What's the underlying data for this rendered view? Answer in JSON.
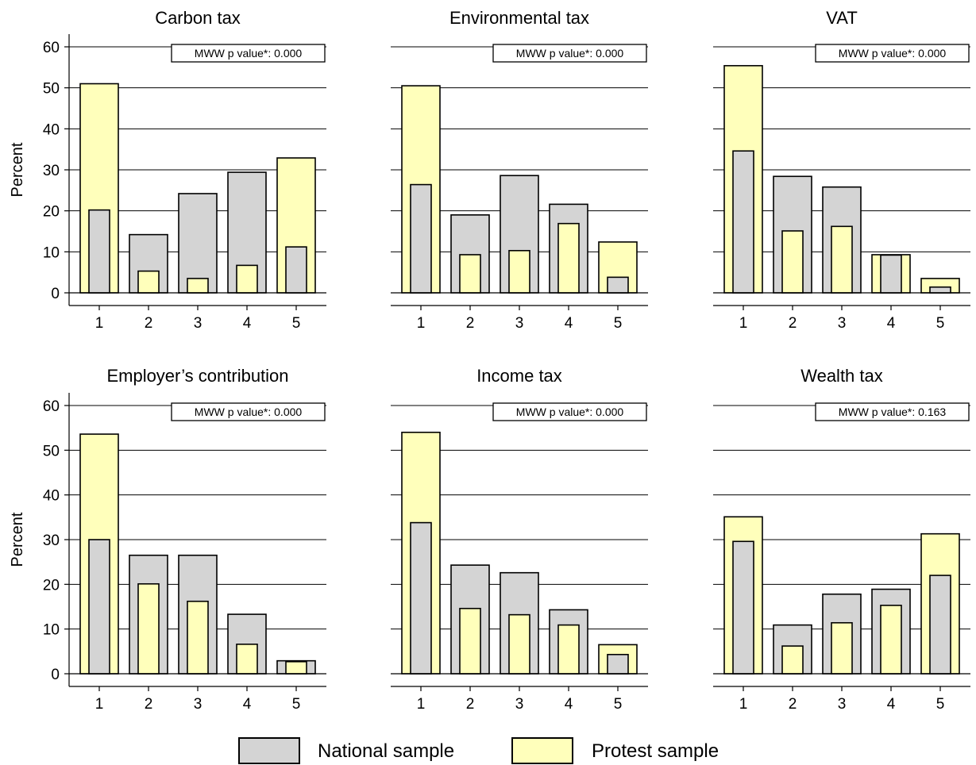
{
  "colors": {
    "national": "#d4d4d4",
    "protest": "#ffffbb",
    "stroke": "#000000",
    "grid": "#000000"
  },
  "legend": {
    "placement": "bottom-center",
    "national_label": "National sample",
    "protest_label": "Protest sample"
  },
  "chart_data": [
    {
      "type": "bar",
      "title": "Carbon tax",
      "ylabel": "Percent",
      "xlabel": "",
      "categories": [
        "1",
        "2",
        "3",
        "4",
        "5"
      ],
      "ylim": [
        0,
        60
      ],
      "yticks": [
        "0",
        "10",
        "20",
        "30",
        "40",
        "50",
        "60"
      ],
      "grid": true,
      "annotation": "MWW p  value*: 0.000",
      "series": [
        {
          "name": "National sample",
          "values": [
            20.2,
            14.2,
            24.2,
            29.4,
            11.2
          ]
        },
        {
          "name": "Protest sample",
          "values": [
            51,
            5.3,
            3.5,
            6.7,
            32.9
          ]
        }
      ]
    },
    {
      "type": "bar",
      "title": "Environmental tax",
      "ylabel": "",
      "xlabel": "",
      "categories": [
        "1",
        "2",
        "3",
        "4",
        "5"
      ],
      "ylim": [
        0,
        60
      ],
      "yticks": [],
      "grid": true,
      "annotation": "MWW p  value*: 0.000",
      "series": [
        {
          "name": "National sample",
          "values": [
            26.4,
            19.0,
            28.6,
            21.6,
            3.8
          ]
        },
        {
          "name": "Protest sample",
          "values": [
            50.5,
            9.3,
            10.3,
            16.9,
            12.4
          ]
        }
      ]
    },
    {
      "type": "bar",
      "title": "VAT",
      "ylabel": "",
      "xlabel": "",
      "categories": [
        "1",
        "2",
        "3",
        "4",
        "5"
      ],
      "ylim": [
        0,
        60
      ],
      "yticks": [],
      "grid": true,
      "annotation": "MWW p  value*: 0.000",
      "series": [
        {
          "name": "National sample",
          "values": [
            34.6,
            28.4,
            25.8,
            9.2,
            1.4
          ]
        },
        {
          "name": "Protest sample",
          "values": [
            55.4,
            15.1,
            16.2,
            9.3,
            3.5
          ]
        }
      ]
    },
    {
      "type": "bar",
      "title": "Employer’s contribution",
      "ylabel": "Percent",
      "xlabel": "",
      "categories": [
        "1",
        "2",
        "3",
        "4",
        "5"
      ],
      "ylim": [
        0,
        60
      ],
      "yticks": [
        "0",
        "10",
        "20",
        "30",
        "40",
        "50",
        "60"
      ],
      "grid": true,
      "annotation": "MWW p  value*: 0.000",
      "series": [
        {
          "name": "National sample",
          "values": [
            30.0,
            26.5,
            26.5,
            13.3,
            2.9
          ]
        },
        {
          "name": "Protest sample",
          "values": [
            53.6,
            20.1,
            16.2,
            6.6,
            2.7
          ]
        }
      ]
    },
    {
      "type": "bar",
      "title": "Income tax",
      "ylabel": "",
      "xlabel": "",
      "categories": [
        "1",
        "2",
        "3",
        "4",
        "5"
      ],
      "ylim": [
        0,
        60
      ],
      "yticks": [],
      "grid": true,
      "annotation": "MWW p  value*: 0.000",
      "series": [
        {
          "name": "National sample",
          "values": [
            33.8,
            24.3,
            22.6,
            14.3,
            4.3
          ]
        },
        {
          "name": "Protest sample",
          "values": [
            54.0,
            14.6,
            13.2,
            10.9,
            6.5
          ]
        }
      ]
    },
    {
      "type": "bar",
      "title": "Wealth tax",
      "ylabel": "",
      "xlabel": "",
      "categories": [
        "1",
        "2",
        "3",
        "4",
        "5"
      ],
      "ylim": [
        0,
        60
      ],
      "yticks": [],
      "grid": true,
      "annotation": "MWW p  value*: 0.163",
      "series": [
        {
          "name": "National sample",
          "values": [
            29.6,
            10.9,
            17.8,
            18.9,
            22.0
          ]
        },
        {
          "name": "Protest sample",
          "values": [
            35.1,
            6.2,
            11.4,
            15.3,
            31.3
          ]
        }
      ]
    }
  ]
}
